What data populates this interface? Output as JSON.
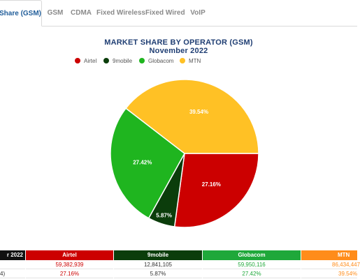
{
  "tabs": [
    {
      "label": "Share (GSM)",
      "active": true
    },
    {
      "label": "GSM",
      "active": false
    },
    {
      "label": "CDMA",
      "active": false
    },
    {
      "label": "Fixed Wireless",
      "active": false
    },
    {
      "label": "Fixed Wired",
      "active": false
    },
    {
      "label": "VoIP",
      "active": false
    }
  ],
  "chart_data": {
    "type": "pie",
    "title": "MARKET SHARE BY OPERATOR (GSM)",
    "subtitle": "November 2022",
    "legend_position": "top-left",
    "categories": [
      "Airtel",
      "9mobile",
      "Globacom",
      "MTN"
    ],
    "values": [
      27.16,
      5.87,
      27.42,
      39.54
    ],
    "labels": [
      "27.16%",
      "5.87%",
      "27.42%",
      "39.54%"
    ],
    "colors": [
      "#cc0000",
      "#0b3d0b",
      "#1fb51f",
      "#ffc125"
    ]
  },
  "table": {
    "corner_label": "r 2022",
    "columns": [
      {
        "name": "Airtel",
        "color": "#cc0000"
      },
      {
        "name": "9mobile",
        "color": "#0b3d0b"
      },
      {
        "name": "Globacom",
        "color": "#1fa83a"
      },
      {
        "name": "MTN",
        "color": "#ff8c1a"
      }
    ],
    "rows": [
      {
        "label": "",
        "values": [
          "59,382,939",
          "12,841,105",
          "59,950,116",
          "86,434,447"
        ]
      },
      {
        "label": "4)",
        "values": [
          "27.16%",
          "5.87%",
          "27.42%",
          "39.54%"
        ]
      }
    ],
    "value_colors": [
      "#cc0000",
      "#333333",
      "#1fa83a",
      "#ff8c1a"
    ]
  }
}
